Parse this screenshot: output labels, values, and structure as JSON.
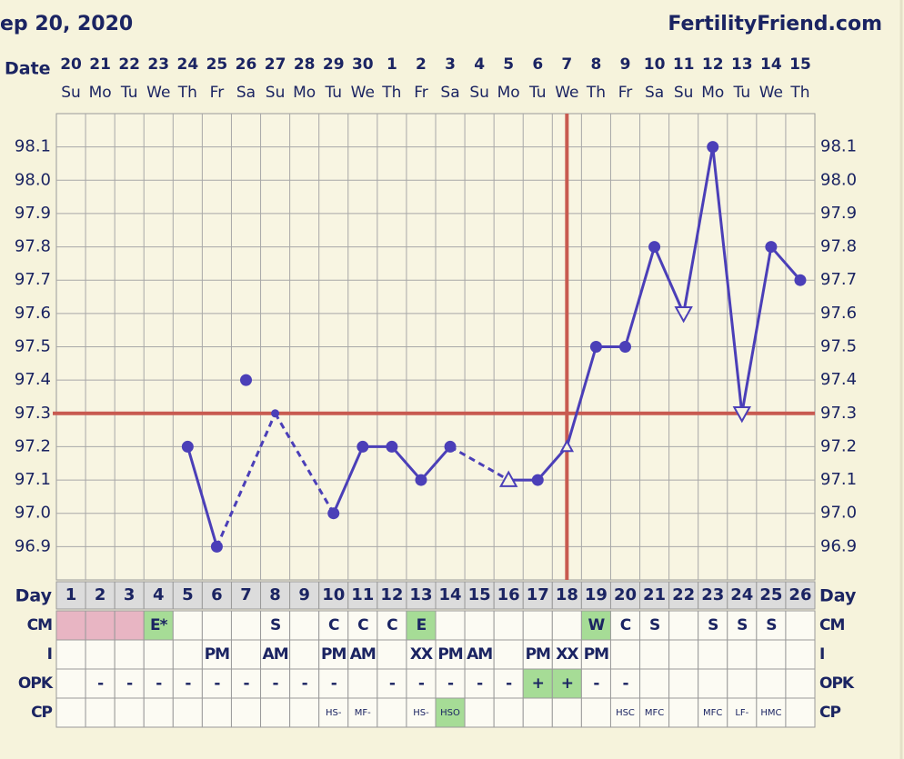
{
  "chart_data": {
    "type": "bbt",
    "title": "ep 20, 2020",
    "site": "FertilityFriend.com",
    "date_label": "Date",
    "dates": [
      "20",
      "21",
      "22",
      "23",
      "24",
      "25",
      "26",
      "27",
      "28",
      "29",
      "30",
      "1",
      "2",
      "3",
      "4",
      "5",
      "6",
      "7",
      "8",
      "9",
      "10",
      "11",
      "12",
      "13",
      "14",
      "15"
    ],
    "weekdays": [
      "Su",
      "Mo",
      "Tu",
      "We",
      "Th",
      "Fr",
      "Sa",
      "Su",
      "Mo",
      "Tu",
      "We",
      "Th",
      "Fr",
      "Sa",
      "Su",
      "Mo",
      "Tu",
      "We",
      "Th",
      "Fr",
      "Sa",
      "Su",
      "Mo",
      "Tu",
      "We",
      "Th"
    ],
    "ylim": [
      96.8,
      98.2
    ],
    "yticks": [
      96.9,
      {
        "value": 97.0,
        "label": "97.0"
      },
      97.1,
      97.2,
      97.3,
      97.4,
      97.5,
      97.6,
      97.7,
      97.8,
      97.9,
      {
        "value": 98.0,
        "label": "98.0"
      },
      98.1
    ],
    "grid": true,
    "series": [
      {
        "color": "#4b3fb8",
        "values": [
          null,
          null,
          null,
          null,
          97.2,
          96.9,
          null,
          97.3,
          null,
          97.0,
          97.2,
          97.2,
          97.1,
          97.2,
          null,
          97.1,
          97.1,
          97.2,
          97.5,
          97.5,
          97.8,
          97.6,
          98.1,
          97.3,
          97.8,
          97.7
        ],
        "markers": [
          null,
          null,
          null,
          null,
          "dot",
          "dot",
          null,
          "small-dot",
          null,
          "dot",
          "dot",
          "dot",
          "dot",
          "dot",
          null,
          "open-triangle-up",
          "dot",
          "small-open-triangle-up",
          "dot",
          "dot",
          "dot",
          "open-triangle-down",
          "dot",
          "open-triangle-down",
          "dot",
          "dot"
        ]
      },
      {
        "color": "#4b3fb8",
        "values": [
          null,
          null,
          null,
          null,
          null,
          null,
          97.4,
          null,
          null,
          null,
          null,
          null,
          null,
          null,
          null,
          null,
          null,
          null,
          null,
          null,
          null,
          null,
          null,
          null,
          null,
          null
        ],
        "markers": [
          null,
          null,
          null,
          null,
          null,
          null,
          "dot",
          null,
          null,
          null,
          null,
          null,
          null,
          null,
          null,
          null,
          null,
          null,
          null,
          null,
          null,
          null,
          null,
          null,
          null,
          null
        ]
      }
    ],
    "coverline": 97.3,
    "ovulation_day": 18,
    "line_color": "#c85a50",
    "day_label": "Day",
    "days": [
      1,
      2,
      3,
      4,
      5,
      6,
      7,
      8,
      9,
      10,
      11,
      12,
      13,
      14,
      15,
      16,
      17,
      18,
      19,
      20,
      21,
      22,
      23,
      24,
      25,
      26
    ],
    "rows": [
      {
        "label": "CM",
        "cells": [
          {
            "fill": "#e8b5c3"
          },
          {
            "fill": "#e8b5c3"
          },
          {
            "fill": "#e8b5c3"
          },
          {
            "text": "E*",
            "fill": "#a6dc96"
          },
          null,
          null,
          null,
          "S",
          null,
          "C",
          "C",
          "C",
          {
            "text": "E",
            "fill": "#a6dc96"
          },
          null,
          null,
          null,
          null,
          null,
          {
            "text": "W",
            "fill": "#a6dc96"
          },
          "C",
          "S",
          null,
          "S",
          "S",
          "S",
          null
        ]
      },
      {
        "label": "I",
        "cells": [
          null,
          null,
          null,
          null,
          null,
          "PM",
          null,
          "AM",
          null,
          "PM",
          "AM",
          null,
          "XX",
          "PM",
          "AM",
          null,
          "PM",
          "XX",
          "PM",
          null,
          null,
          null,
          null,
          null,
          null,
          null
        ]
      },
      {
        "label": "OPK",
        "cells": [
          null,
          "-",
          "-",
          "-",
          "-",
          "-",
          "-",
          "-",
          "-",
          "-",
          null,
          "-",
          "-",
          "-",
          "-",
          "-",
          {
            "text": "+",
            "fill": "#a6dc96"
          },
          {
            "text": "+",
            "fill": "#a6dc96"
          },
          "-",
          "-",
          null,
          null,
          null,
          null,
          null,
          null
        ]
      },
      {
        "label": "CP",
        "cells": [
          null,
          null,
          null,
          null,
          null,
          null,
          null,
          null,
          null,
          "HS-",
          "MF-",
          null,
          "HS-",
          {
            "text": "HSO",
            "fill": "#a6dc96"
          },
          null,
          null,
          null,
          null,
          null,
          "HSC",
          "MFC",
          null,
          "MFC",
          "LF-",
          "HMC",
          null
        ]
      }
    ]
  }
}
